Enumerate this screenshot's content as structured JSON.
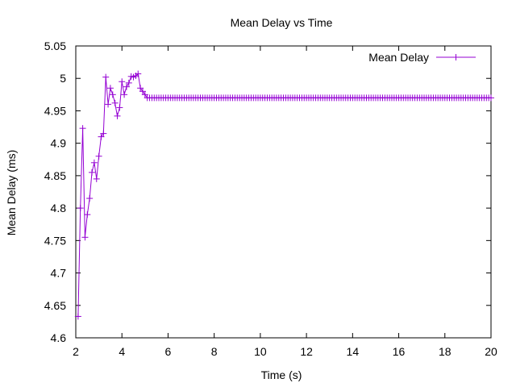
{
  "chart_data": {
    "type": "line",
    "title": "Mean Delay vs Time",
    "xlabel": "Time (s)",
    "ylabel": "Mean Delay (ms)",
    "xlim": [
      2,
      20
    ],
    "ylim": [
      4.6,
      5.05
    ],
    "xticks": [
      "2",
      "4",
      "6",
      "8",
      "10",
      "12",
      "14",
      "16",
      "18",
      "20"
    ],
    "yticks": [
      "4.6",
      "4.65",
      "4.7",
      "4.75",
      "4.8",
      "4.85",
      "4.9",
      "4.95",
      "5",
      "5.05"
    ],
    "legend_position": "top-right",
    "marker": "plus",
    "grid": false,
    "series_color": "#9400d3",
    "series": [
      {
        "name": "Mean Delay",
        "x": [
          2.1,
          2.2,
          2.3,
          2.4,
          2.5,
          2.6,
          2.7,
          2.8,
          2.9,
          3.0,
          3.1,
          3.2,
          3.3,
          3.4,
          3.5,
          3.6,
          3.7,
          3.8,
          3.9,
          4.0,
          4.1,
          4.2,
          4.3,
          4.4,
          4.5,
          4.6,
          4.7,
          4.8,
          4.9,
          5.0,
          5.1
        ],
        "y": [
          4.633,
          4.8,
          4.923,
          4.755,
          4.79,
          4.815,
          4.855,
          4.87,
          4.845,
          4.88,
          4.91,
          4.915,
          5.002,
          4.96,
          4.985,
          4.975,
          4.962,
          4.942,
          4.955,
          4.995,
          4.975,
          4.987,
          4.993,
          5.003,
          5.002,
          5.004,
          5.007,
          4.985,
          4.98,
          4.975,
          4.97
        ]
      }
    ],
    "steady_state": {
      "value": 4.97,
      "x_start": 5.1,
      "x_end": 20,
      "step": 0.1
    }
  }
}
